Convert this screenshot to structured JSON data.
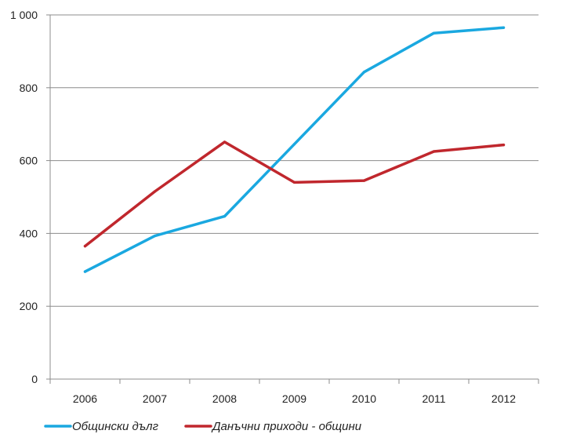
{
  "chart_data": {
    "type": "line",
    "title": "",
    "xlabel": "",
    "ylabel": "",
    "categories": [
      "2006",
      "2007",
      "2008",
      "2009",
      "2010",
      "2011",
      "2012"
    ],
    "ylim": [
      0,
      1000
    ],
    "yticks": [
      0,
      200,
      400,
      600,
      800,
      1000
    ],
    "ytick_labels": [
      "0",
      "200",
      "400",
      "600",
      "800",
      "1 000"
    ],
    "grid": true,
    "legend_position": "bottom",
    "series": [
      {
        "name": "Общински дълг",
        "color": "#1aa8e0",
        "values": [
          295,
          393,
          447,
          645,
          843,
          950,
          965
        ]
      },
      {
        "name": "Данъчни приходи - общини",
        "color": "#c0272d",
        "values": [
          365,
          515,
          651,
          540,
          545,
          625,
          643
        ]
      }
    ]
  }
}
